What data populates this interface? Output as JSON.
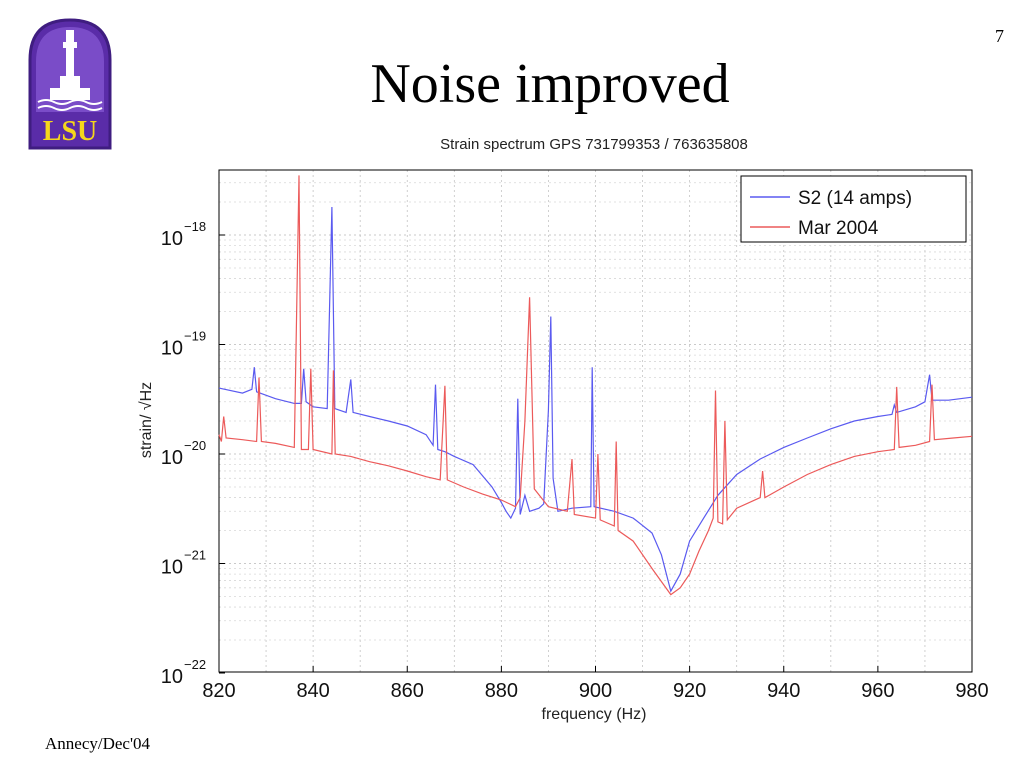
{
  "slide": {
    "title": "Noise improved",
    "page_number": "7",
    "footer": "Annecy/Dec'04",
    "logo_text": "LSU",
    "logo_colors": {
      "purple": "#5a2ca8",
      "gold": "#f5d71b"
    }
  },
  "chart_data": {
    "type": "line",
    "title": "Strain spectrum GPS 731799353 / 763635808",
    "xlabel": "frequency (Hz)",
    "ylabel": "strain/ √Hz",
    "xlim": [
      820,
      980
    ],
    "ylim_log10": [
      -22,
      -17.5
    ],
    "y_scale": "log",
    "grid": true,
    "legend_position": "top-right",
    "x_ticks": [
      "820",
      "840",
      "860",
      "880",
      "900",
      "920",
      "940",
      "960",
      "980"
    ],
    "y_ticks": [
      {
        "base": "10",
        "exp": "−18",
        "log": -18
      },
      {
        "base": "10",
        "exp": "−19",
        "log": -19
      },
      {
        "base": "10",
        "exp": "−20",
        "log": -20
      },
      {
        "base": "10",
        "exp": "−21",
        "log": -21
      },
      {
        "base": "10",
        "exp": "−22",
        "log": -22
      }
    ],
    "series": [
      {
        "name": "S2 (14 amps)",
        "color": "#5a5af0",
        "points": [
          [
            820,
            4e-20
          ],
          [
            825,
            3.6e-20
          ],
          [
            827,
            3.9e-20
          ],
          [
            827.5,
            6.2e-20
          ],
          [
            828,
            3.7e-20
          ],
          [
            832,
            3.2e-20
          ],
          [
            836,
            2.9e-20
          ],
          [
            837.5,
            2.9e-20
          ],
          [
            838,
            6e-20
          ],
          [
            838.5,
            3e-20
          ],
          [
            840,
            2.7e-20
          ],
          [
            843,
            2.6e-20
          ],
          [
            844,
            1.8e-18
          ],
          [
            844.6,
            2.6e-20
          ],
          [
            847,
            2.4e-20
          ],
          [
            848,
            4.8e-20
          ],
          [
            848.5,
            2.4e-20
          ],
          [
            852,
            2.2e-20
          ],
          [
            856,
            2e-20
          ],
          [
            860,
            1.8e-20
          ],
          [
            864,
            1.5e-20
          ],
          [
            865.5,
            1.2e-20
          ],
          [
            866,
            4.3e-20
          ],
          [
            866.5,
            1.1e-20
          ],
          [
            868,
            1.05e-20
          ],
          [
            870,
            9.5e-21
          ],
          [
            874,
            8e-21
          ],
          [
            878,
            5e-21
          ],
          [
            880,
            3.6e-21
          ],
          [
            881,
            3e-21
          ],
          [
            882,
            2.6e-21
          ],
          [
            883,
            3.2e-21
          ],
          [
            883.5,
            3.2e-20
          ],
          [
            884,
            2.8e-21
          ],
          [
            885,
            4.2e-21
          ],
          [
            886,
            3e-21
          ],
          [
            888,
            3.2e-21
          ],
          [
            889,
            3.5e-21
          ],
          [
            890,
            2.5e-20
          ],
          [
            890.5,
            1.8e-19
          ],
          [
            891,
            6e-21
          ],
          [
            892,
            3e-21
          ],
          [
            895,
            3.2e-21
          ],
          [
            899,
            3.3e-21
          ],
          [
            899.3,
            6.2e-20
          ],
          [
            899.7,
            3.3e-21
          ],
          [
            904,
            3e-21
          ],
          [
            908,
            2.6e-21
          ],
          [
            912,
            1.9e-21
          ],
          [
            914,
            1.2e-21
          ],
          [
            916,
            5.6e-22
          ],
          [
            918,
            8e-22
          ],
          [
            920,
            1.6e-21
          ],
          [
            923,
            2.6e-21
          ],
          [
            926,
            4.2e-21
          ],
          [
            930,
            6.5e-21
          ],
          [
            935,
            9e-21
          ],
          [
            940,
            1.15e-20
          ],
          [
            945,
            1.4e-20
          ],
          [
            950,
            1.7e-20
          ],
          [
            955,
            2e-20
          ],
          [
            960,
            2.2e-20
          ],
          [
            963,
            2.3e-20
          ],
          [
            963.5,
            2.8e-20
          ],
          [
            964,
            2.4e-20
          ],
          [
            968,
            2.7e-20
          ],
          [
            970,
            3e-20
          ],
          [
            971,
            5.3e-20
          ],
          [
            971.5,
            3.1e-20
          ],
          [
            975,
            3.1e-20
          ],
          [
            980,
            3.3e-20
          ]
        ]
      },
      {
        "name": "Mar 2004",
        "color": "#ec5a5a",
        "points": [
          [
            820,
            1.5e-20
          ],
          [
            820.5,
            1.3e-20
          ],
          [
            821,
            2.2e-20
          ],
          [
            821.5,
            1.4e-20
          ],
          [
            825,
            1.35e-20
          ],
          [
            828,
            1.3e-20
          ],
          [
            828.5,
            5e-20
          ],
          [
            829,
            1.3e-20
          ],
          [
            832,
            1.25e-20
          ],
          [
            836,
            1.15e-20
          ],
          [
            837,
            3.5e-18
          ],
          [
            837.5,
            1.1e-20
          ],
          [
            839,
            1.1e-20
          ],
          [
            839.5,
            6e-20
          ],
          [
            840,
            1.1e-20
          ],
          [
            844,
            1e-20
          ],
          [
            844.3,
            5.8e-20
          ],
          [
            844.7,
            1e-20
          ],
          [
            848,
            9.5e-21
          ],
          [
            852,
            8.5e-21
          ],
          [
            856,
            7.8e-21
          ],
          [
            860,
            7e-21
          ],
          [
            864,
            6.2e-21
          ],
          [
            867,
            5.8e-21
          ],
          [
            868,
            4.2e-20
          ],
          [
            868.5,
            5.8e-21
          ],
          [
            872,
            5e-21
          ],
          [
            876,
            4.3e-21
          ],
          [
            880,
            3.8e-21
          ],
          [
            883,
            3.3e-21
          ],
          [
            884,
            4e-21
          ],
          [
            885,
            2e-20
          ],
          [
            886,
            2.7e-19
          ],
          [
            887,
            4.8e-21
          ],
          [
            890,
            3.3e-21
          ],
          [
            894,
            3e-21
          ],
          [
            895,
            9e-21
          ],
          [
            895.5,
            2.8e-21
          ],
          [
            900,
            2.6e-21
          ],
          [
            900.5,
            1e-20
          ],
          [
            901,
            2.5e-21
          ],
          [
            904,
            2.2e-21
          ],
          [
            904.4,
            1.3e-20
          ],
          [
            904.8,
            2e-21
          ],
          [
            908,
            1.6e-21
          ],
          [
            912,
            9e-22
          ],
          [
            916,
            5.2e-22
          ],
          [
            918,
            6e-22
          ],
          [
            920,
            8e-22
          ],
          [
            922,
            1.3e-21
          ],
          [
            924,
            2e-21
          ],
          [
            925,
            2.6e-21
          ],
          [
            925.5,
            3.8e-20
          ],
          [
            926,
            2.4e-21
          ],
          [
            927,
            2.3e-21
          ],
          [
            927.5,
            2e-20
          ],
          [
            928,
            2.5e-21
          ],
          [
            930,
            3.2e-21
          ],
          [
            935,
            4e-21
          ],
          [
            935.5,
            7e-21
          ],
          [
            936,
            4e-21
          ],
          [
            940,
            5e-21
          ],
          [
            945,
            6.5e-21
          ],
          [
            950,
            8e-21
          ],
          [
            955,
            9.5e-21
          ],
          [
            960,
            1.05e-20
          ],
          [
            963.5,
            1.1e-20
          ],
          [
            964,
            4.1e-20
          ],
          [
            964.5,
            1.15e-20
          ],
          [
            968,
            1.2e-20
          ],
          [
            971,
            1.3e-20
          ],
          [
            971.5,
            4.3e-20
          ],
          [
            972,
            1.35e-20
          ],
          [
            976,
            1.4e-20
          ],
          [
            980,
            1.45e-20
          ]
        ]
      }
    ]
  }
}
